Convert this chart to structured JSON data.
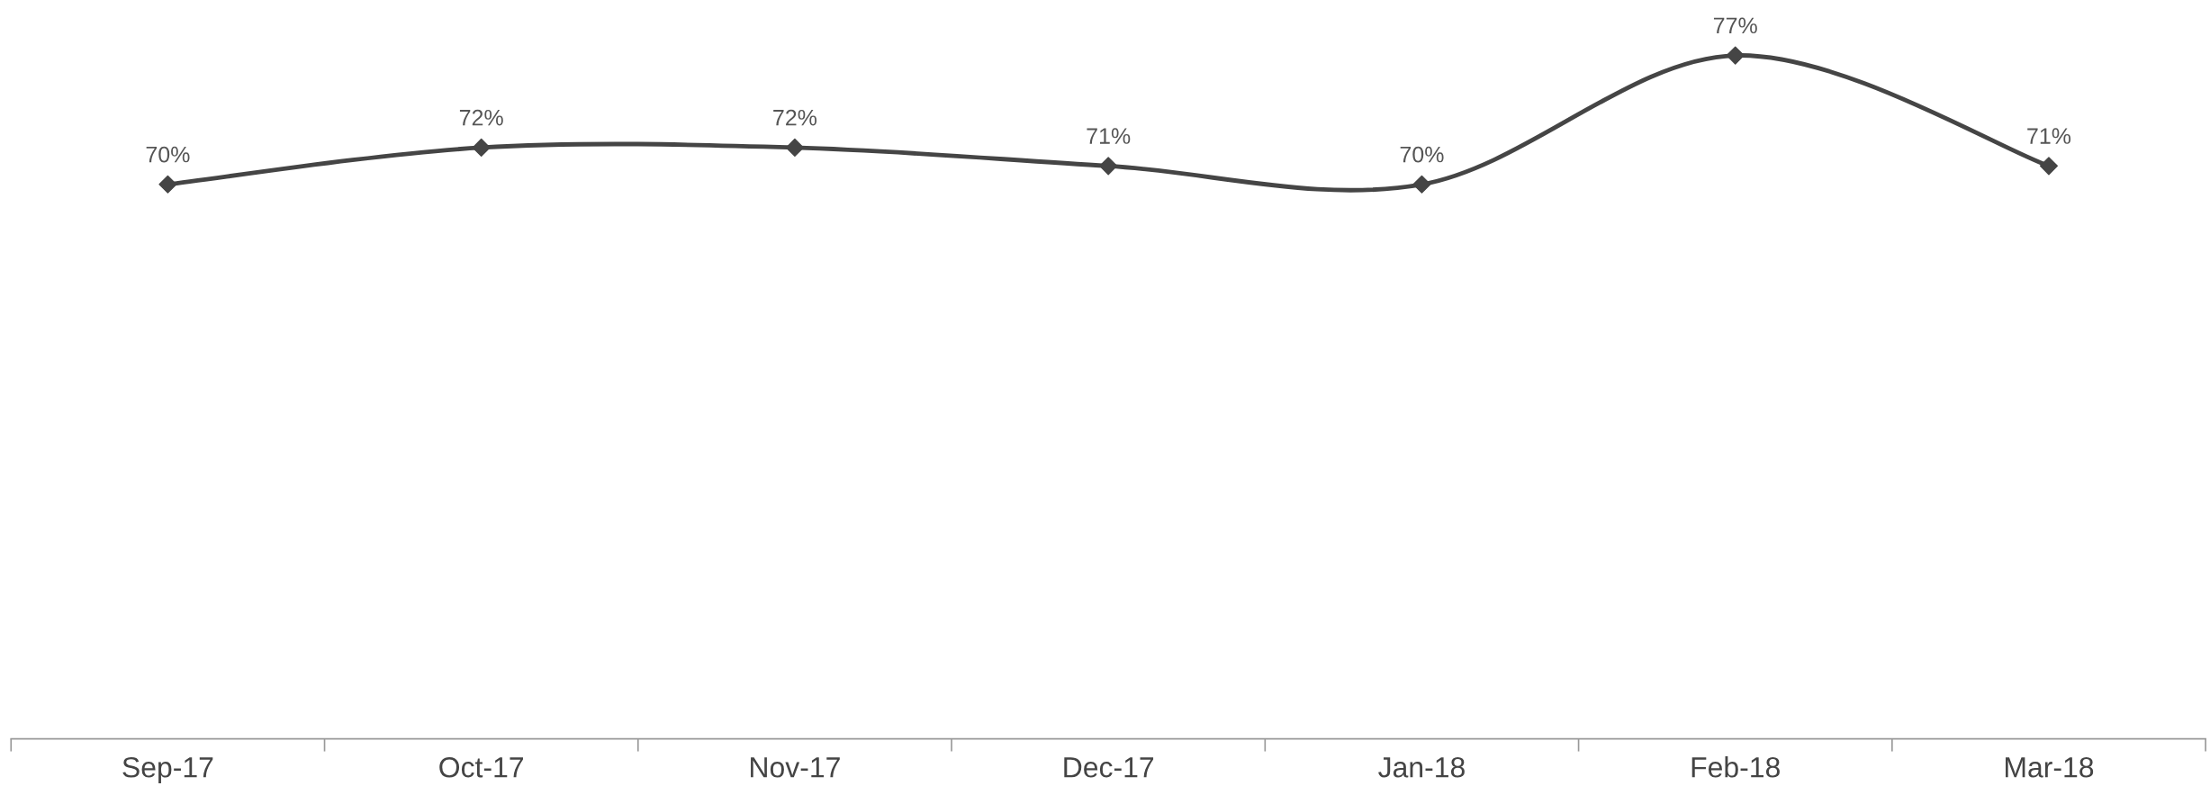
{
  "chart_data": {
    "type": "line",
    "categories": [
      "Sep-17",
      "Oct-17",
      "Nov-17",
      "Dec-17",
      "Jan-18",
      "Feb-18",
      "Mar-18"
    ],
    "series": [
      {
        "color": "#454545",
        "values": [
          70,
          72,
          72,
          71,
          70,
          77,
          71
        ],
        "value_labels": [
          "70%",
          "72%",
          "72%",
          "71%",
          "70%",
          "77%",
          "71%"
        ]
      }
    ],
    "marker": "diamond",
    "line_style": "solid",
    "grid": false,
    "legend": false,
    "tick_labels": "x"
  }
}
